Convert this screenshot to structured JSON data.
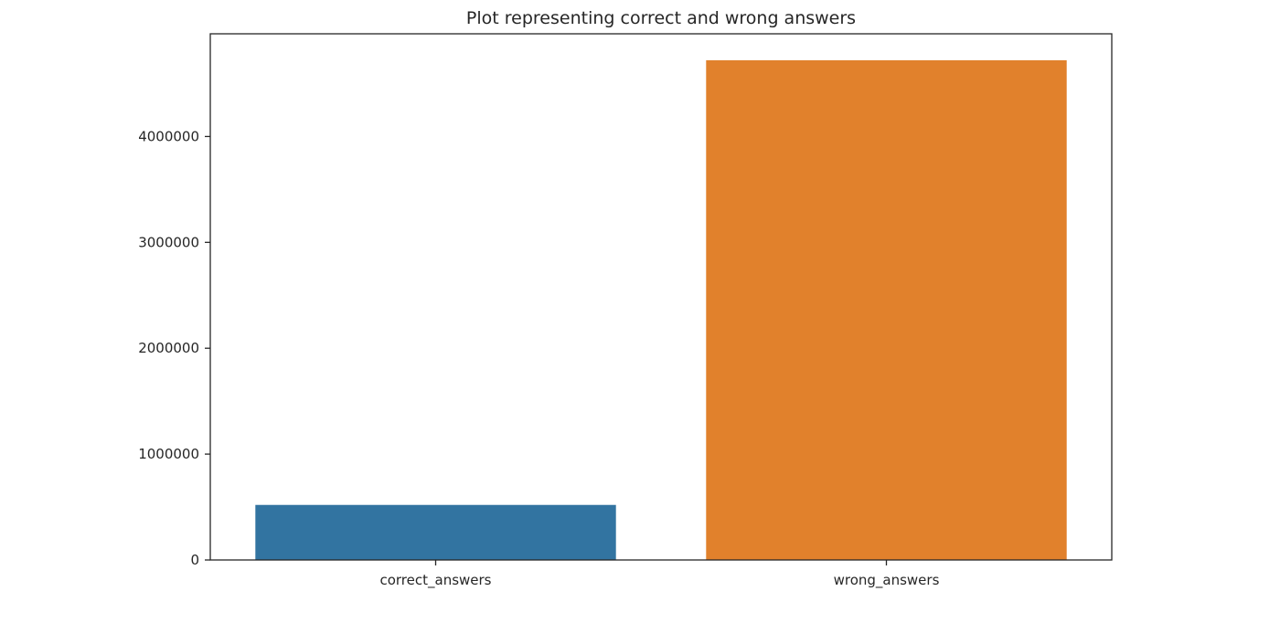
{
  "chart_data": {
    "type": "bar",
    "title": "Plot representing correct and wrong answers",
    "xlabel": "",
    "ylabel": "",
    "categories": [
      "correct_answers",
      "wrong_answers"
    ],
    "values": [
      520000,
      4720000
    ],
    "colors": [
      "#3274a1",
      "#e1812c"
    ],
    "ylim": [
      0,
      4970000
    ],
    "yticks": [
      0,
      1000000,
      2000000,
      3000000,
      4000000
    ],
    "ytick_labels": [
      "0",
      "1000000",
      "2000000",
      "3000000",
      "4000000"
    ],
    "grid": false,
    "legend": "none"
  }
}
